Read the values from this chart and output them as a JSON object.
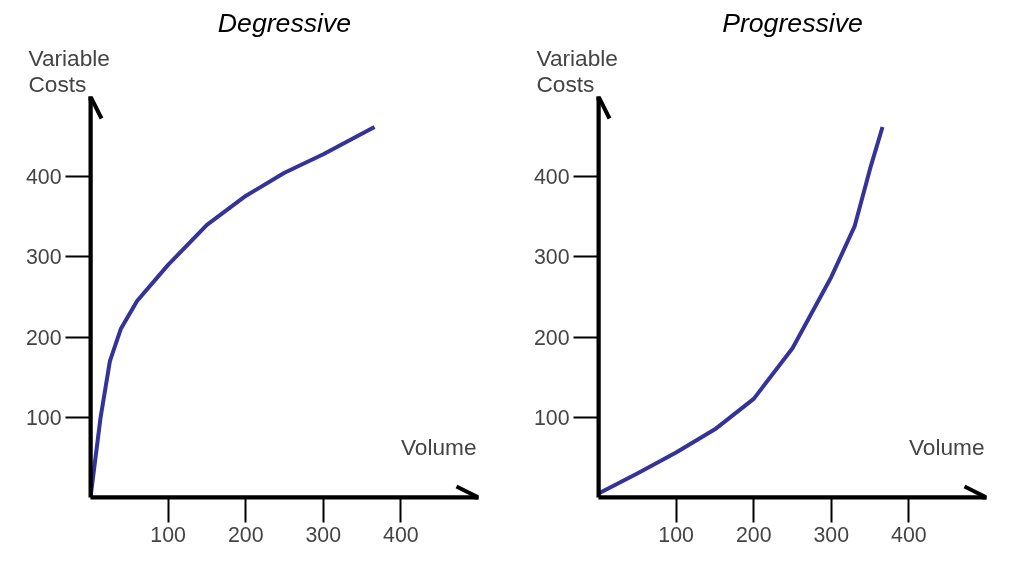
{
  "chart_data": [
    {
      "type": "line",
      "title": "Degressive",
      "ylabel": "Variable Costs",
      "xlabel": "Volume",
      "series": [
        {
          "color": "#333399",
          "x": [
            0,
            13,
            25,
            39,
            60,
            100,
            150,
            200,
            250,
            300,
            366
          ],
          "values": [
            0,
            100,
            170,
            210,
            245,
            290,
            340,
            376,
            405,
            428,
            462
          ]
        }
      ],
      "xlim": [
        0,
        500
      ],
      "ylim": [
        0,
        500
      ],
      "xticks": [
        100,
        200,
        300,
        400
      ],
      "yticks": [
        100,
        200,
        300,
        400
      ],
      "grid": false
    },
    {
      "type": "line",
      "title": "Progressive",
      "ylabel": "Variable Costs",
      "xlabel": "Volume",
      "series": [
        {
          "color": "#333399",
          "x": [
            0,
            50,
            100,
            150,
            200,
            250,
            300,
            330,
            350,
            366
          ],
          "values": [
            5,
            30,
            56,
            85,
            123,
            186,
            275,
            338,
            410,
            462
          ]
        }
      ],
      "xlim": [
        0,
        500
      ],
      "ylim": [
        0,
        500
      ],
      "xticks": [
        100,
        200,
        300,
        400
      ],
      "yticks": [
        100,
        200,
        300,
        400
      ],
      "grid": false
    }
  ]
}
